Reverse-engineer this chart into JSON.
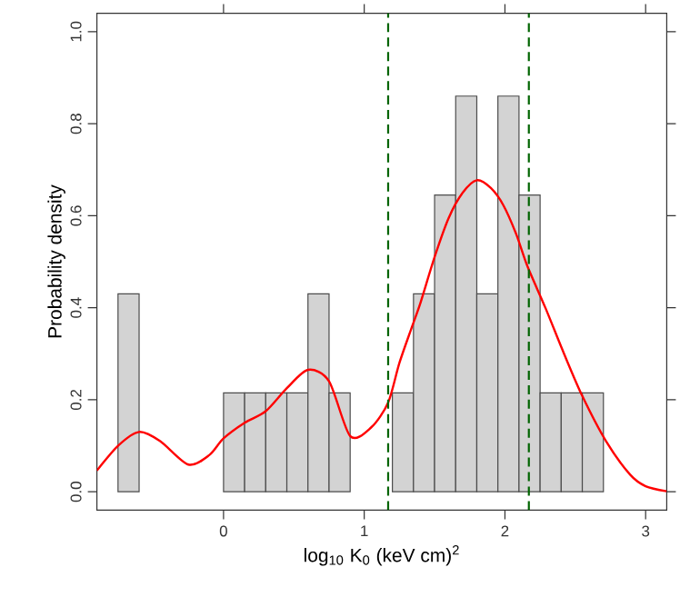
{
  "chart_data": {
    "type": "histogram",
    "xlabel": "log$_{10}$ K$_{0}$  (keV cm)$^{2}$",
    "ylabel": "Probability density",
    "xlim": [
      -0.9,
      3.15
    ],
    "ylim": [
      -0.04,
      1.04
    ],
    "xticks": [
      0,
      1,
      2,
      3
    ],
    "yticks": [
      {
        "value": 0,
        "label": "0.0"
      },
      {
        "value": 0.2,
        "label": "0.2"
      },
      {
        "value": 0.4,
        "label": "0.4"
      },
      {
        "value": 0.6,
        "label": "0.6"
      },
      {
        "value": 0.8,
        "label": "0.8"
      },
      {
        "value": 1.0,
        "label": "1.0"
      }
    ],
    "grid": false,
    "series": [
      {
        "color": "#d3d3d3",
        "bins": [
          -0.75,
          -0.6,
          -0.45,
          -0.3,
          -0.15,
          0,
          0.15,
          0.3,
          0.45,
          0.6,
          0.75,
          0.9,
          1.05,
          1.2,
          1.35,
          1.5,
          1.65,
          1.8,
          1.95,
          2.1,
          2.25,
          2.4,
          2.55,
          2.7,
          2.85,
          3.0
        ],
        "values": [
          0.43,
          0,
          0,
          0,
          0,
          0.215,
          0.215,
          0.215,
          0.215,
          0.43,
          0.215,
          0,
          0,
          0.215,
          0.43,
          0.645,
          0.86,
          0.43,
          0.86,
          0.645,
          0.215,
          0.215,
          0.215,
          0,
          0
        ]
      },
      {
        "type": "line",
        "color": "#ff0000",
        "x": [
          -0.9,
          -0.75,
          -0.6,
          -0.45,
          -0.25,
          -0.1,
          0,
          0.15,
          0.3,
          0.45,
          0.6,
          0.75,
          0.9,
          1.05,
          1.17,
          1.25,
          1.34,
          1.4,
          1.5,
          1.6,
          1.7,
          1.8,
          1.9,
          1.99,
          2.08,
          2.16,
          2.29,
          2.42,
          2.55,
          2.72,
          2.89,
          3.0,
          3.15
        ],
        "values": [
          0.046,
          0.1,
          0.13,
          0.11,
          0.059,
          0.08,
          0.116,
          0.15,
          0.175,
          0.225,
          0.265,
          0.24,
          0.121,
          0.14,
          0.194,
          0.28,
          0.359,
          0.411,
          0.51,
          0.595,
          0.65,
          0.677,
          0.66,
          0.622,
          0.56,
          0.49,
          0.398,
          0.3,
          0.208,
          0.109,
          0.037,
          0.012,
          0.001
        ]
      }
    ],
    "ref_lines": [
      {
        "axis": "x",
        "value": 1.17,
        "color": "#006400",
        "line_style": "dashed"
      },
      {
        "axis": "x",
        "value": 2.17,
        "color": "#006400",
        "line_style": "dashed"
      }
    ]
  }
}
